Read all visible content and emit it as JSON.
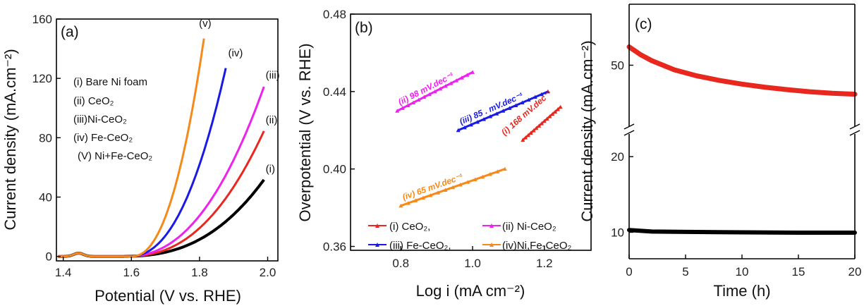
{
  "chart_data": [
    {
      "panel_label": "(a)",
      "type": "line",
      "xlabel": "Potential (V vs. RHE)",
      "ylabel": "Current density (mA.cm⁻²)",
      "xlim": [
        1.38,
        2.03
      ],
      "ylim": [
        -3,
        160
      ],
      "xticks": [
        "1.4",
        "1.6",
        "1.8",
        "2.0"
      ],
      "yticks": [
        "0",
        "40",
        "80",
        "120",
        "160"
      ],
      "xtick_values": [
        1.4,
        1.6,
        1.8,
        2.0
      ],
      "ytick_values": [
        0,
        40,
        80,
        120,
        160
      ],
      "legend_lines": [
        "(i) Bare Ni foam",
        "(ii) CeO₂",
        "(iii)Ni-CeO₂",
        "(iv) Fe-CeO₂",
        "(V) Ni+Fe-CeO₂"
      ],
      "series": [
        {
          "label": "(i)",
          "color": "#000000",
          "onset": 1.56,
          "xend": 1.99,
          "yend": 52,
          "p": 1.6
        },
        {
          "label": "(ii)",
          "color": "#e8281e",
          "onset": 1.58,
          "xend": 1.99,
          "yend": 85,
          "p": 1.4
        },
        {
          "label": "(iii)",
          "color": "#ee22ee",
          "onset": 1.58,
          "xend": 1.99,
          "yend": 115,
          "p": 1.3
        },
        {
          "label": "(iv)",
          "color": "#1a1ae6",
          "onset": 1.59,
          "xend": 1.88,
          "yend": 130,
          "p": 1.3
        },
        {
          "label": "(v)",
          "color": "#f58a1a",
          "onset": 1.6,
          "xend": 1.815,
          "yend": 150,
          "p": 1.25
        }
      ]
    },
    {
      "panel_label": "(b)",
      "type": "line",
      "xlabel": "Log i (mA cm⁻²)",
      "ylabel": "Overpotential (V vs. RHE)",
      "xlim": [
        0.66,
        1.33
      ],
      "ylim": [
        0.358,
        0.48
      ],
      "xticks": [
        "0.8",
        "1.0",
        "1.2"
      ],
      "yticks": [
        "0.36",
        "0.40",
        "0.44",
        "0.48"
      ],
      "xtick_values": [
        0.8,
        1.0,
        1.2
      ],
      "ytick_values": [
        0.36,
        0.4,
        0.44,
        0.48
      ],
      "legend": [
        "(i) CeO₂,",
        "(ii) Ni-CeO₂",
        "(iii) Fe-CeO₂,",
        "(iv)Ni,Fe-CeO₂"
      ],
      "series": [
        {
          "name": "(i) CeO₂",
          "color": "#e8281e",
          "x": [
            1.14,
            1.245
          ],
          "y": [
            0.415,
            0.432
          ],
          "slope_label": "(i) 168  mV.dec⁻¹"
        },
        {
          "name": "(ii) Ni-CeO₂",
          "color": "#ee22ee",
          "x": [
            0.79,
            1.0
          ],
          "y": [
            0.43,
            0.45
          ],
          "slope_label": "(ii) 98  mV.dec⁻¹"
        },
        {
          "name": "(iii) Fe-CeO₂",
          "color": "#1a1ae6",
          "x": [
            0.96,
            1.21
          ],
          "y": [
            0.42,
            0.44
          ],
          "slope_label": "(iii) 85 . mV.dec⁻¹"
        },
        {
          "name": "(iv)Ni,Fe-CeO₂",
          "color": "#f58a1a",
          "x": [
            0.8,
            1.09
          ],
          "y": [
            0.381,
            0.4
          ],
          "slope_label": "(iv) 65  mV.dec⁻¹"
        }
      ]
    },
    {
      "panel_label": "(c)",
      "type": "line",
      "xlabel": "Time (h)",
      "ylabel": "Current density (mA.cm⁻²)",
      "xlim": [
        0,
        20
      ],
      "xticks": [
        "0",
        "5",
        "10",
        "15",
        "20"
      ],
      "xtick_values": [
        0,
        5,
        10,
        15,
        20
      ],
      "yticks_upper": [
        "50"
      ],
      "yticks_lower": [
        "10",
        "20"
      ],
      "axis_break": true,
      "series": [
        {
          "color": "#e8281e",
          "x": [
            0,
            1,
            2,
            4,
            6,
            8,
            10,
            12,
            14,
            16,
            18,
            20
          ],
          "y": [
            56,
            53.5,
            51.5,
            48.5,
            46.5,
            45,
            43.8,
            42.8,
            42,
            41.3,
            40.8,
            40.5
          ]
        },
        {
          "color": "#000000",
          "x": [
            0,
            2,
            5,
            10,
            15,
            20
          ],
          "y": [
            10.3,
            10.1,
            10.05,
            10.0,
            9.95,
            9.95
          ]
        }
      ]
    }
  ]
}
